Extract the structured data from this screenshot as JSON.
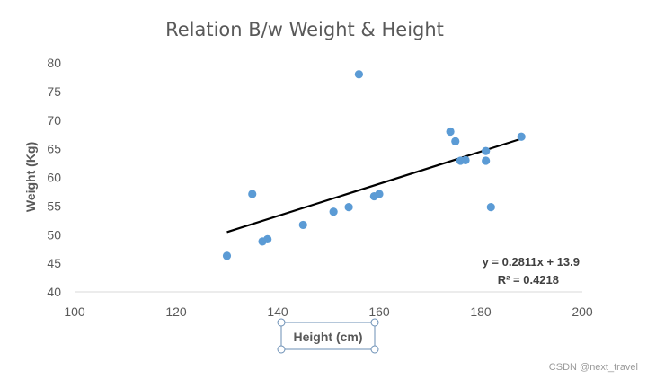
{
  "chart_data": {
    "type": "scatter",
    "title": "Relation B/w Weight & Height",
    "xlabel": "Height (cm)",
    "ylabel": "Weight (Kg)",
    "xlim": [
      100,
      200
    ],
    "ylim": [
      40,
      80
    ],
    "x_ticks": [
      "100",
      "120",
      "140",
      "160",
      "180",
      "200"
    ],
    "y_ticks": [
      "40",
      "45",
      "50",
      "55",
      "60",
      "65",
      "70",
      "75",
      "80"
    ],
    "grid": false,
    "legend": "none",
    "series": [
      {
        "points": [
          [
            130,
            46.3
          ],
          [
            135,
            57.1
          ],
          [
            137,
            48.8
          ],
          [
            138,
            49.2
          ],
          [
            145,
            51.7
          ],
          [
            151,
            54.0
          ],
          [
            154,
            54.8
          ],
          [
            156,
            78.0
          ],
          [
            159,
            56.7
          ],
          [
            160,
            57.1
          ],
          [
            174,
            68.0
          ],
          [
            175,
            66.3
          ],
          [
            176,
            62.9
          ],
          [
            177,
            63.0
          ],
          [
            181,
            64.6
          ],
          [
            181,
            62.9
          ],
          [
            182,
            54.8
          ],
          [
            188,
            67.1
          ]
        ],
        "color": "#5b9bd5"
      }
    ],
    "trendline": {
      "type": "linear",
      "slope": 0.2811,
      "intercept": 13.9,
      "x_range": [
        130,
        188
      ],
      "color": "#000000",
      "equation": "y = 0.2811x + 13.9",
      "r_squared": "R² = 0.4218"
    }
  },
  "watermark": "CSDN @next_travel"
}
